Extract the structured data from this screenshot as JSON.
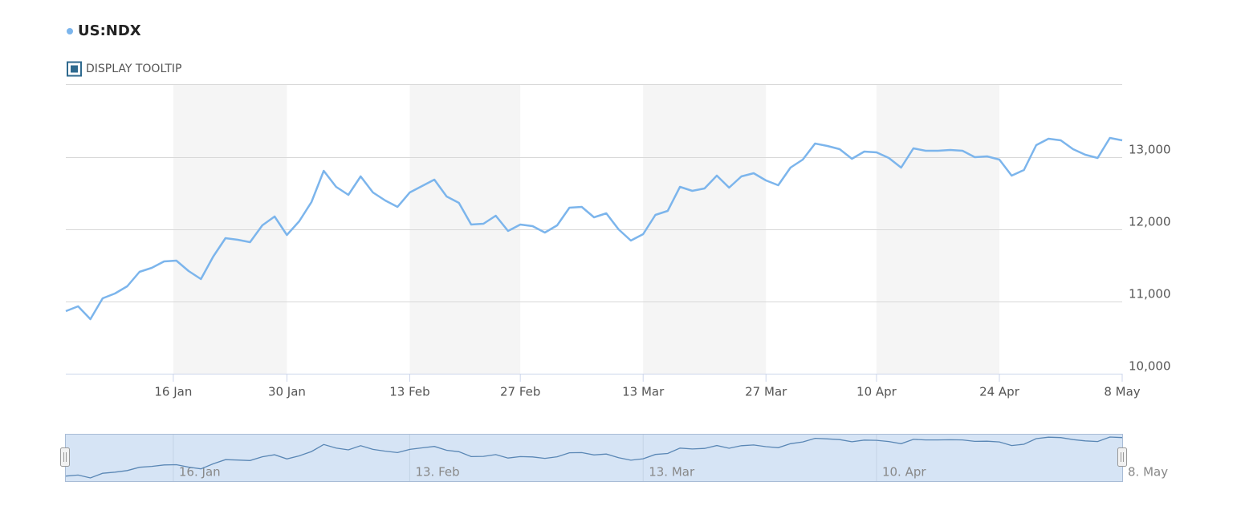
{
  "chart_data": {
    "type": "line",
    "series": [
      {
        "name": "US:NDX",
        "color": "#7cb5ec",
        "values": [
          10867,
          10933,
          10756,
          11044,
          11111,
          11211,
          11411,
          11467,
          11556,
          11567,
          11422,
          11311,
          11622,
          11878,
          11856,
          11822,
          12056,
          12178,
          11922,
          12111,
          12378,
          12811,
          12589,
          12478,
          12733,
          12511,
          12400,
          12311,
          12511,
          12600,
          12689,
          12456,
          12367,
          12067,
          12078,
          12189,
          11978,
          12067,
          12044,
          11956,
          12056,
          12300,
          12311,
          12167,
          12222,
          12000,
          11844,
          11933,
          12200,
          12256,
          12589,
          12533,
          12567,
          12744,
          12578,
          12733,
          12778,
          12678,
          12611,
          12856,
          12967,
          13189,
          13156,
          13111,
          12978,
          13078,
          13067,
          12989,
          12856,
          13122,
          13089,
          13089,
          13100,
          13089,
          13000,
          13011,
          12967,
          12744,
          12822,
          13167,
          13256,
          13233,
          13111,
          13033,
          12989,
          13267,
          13233
        ]
      }
    ],
    "x": [
      "3 Jan",
      "4 Jan",
      "5 Jan",
      "6 Jan",
      "9 Jan",
      "10 Jan",
      "11 Jan",
      "12 Jan",
      "13 Jan",
      "17 Jan",
      "18 Jan",
      "19 Jan",
      "20 Jan",
      "23 Jan",
      "24 Jan",
      "25 Jan",
      "26 Jan",
      "27 Jan",
      "30 Jan",
      "31 Jan",
      "1 Feb",
      "2 Feb",
      "3 Feb",
      "6 Feb",
      "7 Feb",
      "8 Feb",
      "9 Feb",
      "10 Feb",
      "13 Feb",
      "14 Feb",
      "15 Feb",
      "16 Feb",
      "17 Feb",
      "21 Feb",
      "22 Feb",
      "23 Feb",
      "24 Feb",
      "27 Feb",
      "28 Feb",
      "1 Mar",
      "2 Mar",
      "3 Mar",
      "6 Mar",
      "7 Mar",
      "8 Mar",
      "9 Mar",
      "10 Mar",
      "13 Mar",
      "14 Mar",
      "15 Mar",
      "16 Mar",
      "17 Mar",
      "20 Mar",
      "21 Mar",
      "22 Mar",
      "23 Mar",
      "24 Mar",
      "27 Mar",
      "28 Mar",
      "29 Mar",
      "30 Mar",
      "31 Mar",
      "3 Apr",
      "4 Apr",
      "5 Apr",
      "6 Apr",
      "10 Apr",
      "11 Apr",
      "12 Apr",
      "13 Apr",
      "14 Apr",
      "17 Apr",
      "18 Apr",
      "19 Apr",
      "20 Apr",
      "21 Apr",
      "24 Apr",
      "25 Apr",
      "26 Apr",
      "27 Apr",
      "28 Apr",
      "1 May",
      "2 May",
      "3 May",
      "4 May",
      "5 May",
      "8 May"
    ],
    "xticks": [
      "16 Jan",
      "30 Jan",
      "13 Feb",
      "27 Feb",
      "13 Mar",
      "27 Mar",
      "10 Apr",
      "24 Apr",
      "8 May"
    ],
    "ylim": [
      10000,
      14000
    ],
    "yticks": [
      {
        "value": 10000,
        "label": "10,000"
      },
      {
        "value": 11000,
        "label": "11,000"
      },
      {
        "value": 12000,
        "label": "12,000"
      },
      {
        "value": 13000,
        "label": "13,000"
      }
    ],
    "grid": true,
    "alternate_bands": true,
    "tooltip_toggle": "DISPLAY TOOLTIP",
    "navigator": {
      "xticks": [
        {
          "value": "16 Jan",
          "label": "16. Jan"
        },
        {
          "value": "13 Feb",
          "label": "13. Feb"
        },
        {
          "value": "13 Mar",
          "label": "13. Mar"
        },
        {
          "value": "10 Apr",
          "label": "10. Apr"
        },
        {
          "value": "8 May",
          "label": "8. May"
        }
      ]
    }
  }
}
